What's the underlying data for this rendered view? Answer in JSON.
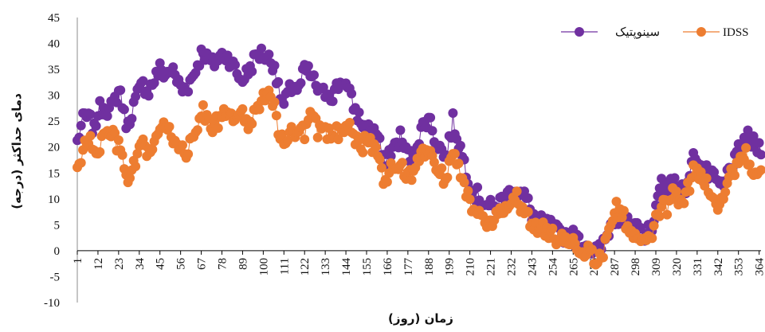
{
  "chart_data": {
    "type": "line",
    "title": "",
    "xlabel": "زمان (روز)",
    "ylabel": "دمای حداکثر (درجه)",
    "ylim": [
      -10,
      45
    ],
    "yticks": [
      -10,
      -5,
      0,
      5,
      10,
      15,
      20,
      25,
      30,
      35,
      40,
      45
    ],
    "xlim": [
      1,
      365
    ],
    "xticks": [
      1,
      12,
      23,
      34,
      45,
      56,
      67,
      78,
      89,
      100,
      111,
      122,
      133,
      144,
      155,
      166,
      177,
      188,
      199,
      210,
      221,
      232,
      243,
      254,
      265,
      276,
      287,
      298,
      309,
      320,
      331,
      342,
      353,
      364
    ],
    "grid": false,
    "legend_position": "top-right",
    "series": [
      {
        "name": "سینوپتیک",
        "color": "#7030A0",
        "keypoints": [
          [
            1,
            21
          ],
          [
            3,
            24
          ],
          [
            5,
            26
          ],
          [
            8,
            25
          ],
          [
            10,
            23
          ],
          [
            12,
            27
          ],
          [
            15,
            28
          ],
          [
            18,
            27
          ],
          [
            20,
            28
          ],
          [
            22,
            30
          ],
          [
            24,
            31
          ],
          [
            26,
            26
          ],
          [
            28,
            24
          ],
          [
            30,
            27
          ],
          [
            33,
            30
          ],
          [
            36,
            32
          ],
          [
            39,
            31
          ],
          [
            42,
            33
          ],
          [
            45,
            35
          ],
          [
            48,
            34
          ],
          [
            51,
            35
          ],
          [
            54,
            33
          ],
          [
            57,
            31
          ],
          [
            60,
            32
          ],
          [
            63,
            34
          ],
          [
            66,
            37
          ],
          [
            68,
            39
          ],
          [
            70,
            37
          ],
          [
            73,
            36
          ],
          [
            76,
            37
          ],
          [
            79,
            38
          ],
          [
            82,
            37
          ],
          [
            85,
            35
          ],
          [
            88,
            33
          ],
          [
            91,
            34
          ],
          [
            94,
            36
          ],
          [
            97,
            38
          ],
          [
            100,
            38
          ],
          [
            103,
            37
          ],
          [
            106,
            36
          ],
          [
            108,
            31
          ],
          [
            111,
            28
          ],
          [
            113,
            30
          ],
          [
            116,
            32
          ],
          [
            119,
            31
          ],
          [
            122,
            35
          ],
          [
            125,
            34
          ],
          [
            128,
            32
          ],
          [
            131,
            30
          ],
          [
            134,
            31
          ],
          [
            137,
            30
          ],
          [
            140,
            32
          ],
          [
            143,
            33
          ],
          [
            146,
            30
          ],
          [
            149,
            27
          ],
          [
            152,
            25
          ],
          [
            155,
            23
          ],
          [
            158,
            24
          ],
          [
            161,
            22
          ],
          [
            164,
            17
          ],
          [
            167,
            19
          ],
          [
            170,
            20
          ],
          [
            173,
            22
          ],
          [
            176,
            19
          ],
          [
            179,
            18
          ],
          [
            182,
            21
          ],
          [
            185,
            24
          ],
          [
            188,
            26
          ],
          [
            191,
            22
          ],
          [
            194,
            20
          ],
          [
            197,
            18
          ],
          [
            199,
            21
          ],
          [
            201,
            25
          ],
          [
            204,
            21
          ],
          [
            207,
            17
          ],
          [
            210,
            13
          ],
          [
            213,
            11
          ],
          [
            216,
            10
          ],
          [
            219,
            9
          ],
          [
            222,
            8
          ],
          [
            225,
            9
          ],
          [
            228,
            10
          ],
          [
            231,
            11
          ],
          [
            234,
            12
          ],
          [
            237,
            11
          ],
          [
            240,
            10
          ],
          [
            243,
            7
          ],
          [
            246,
            6
          ],
          [
            249,
            5
          ],
          [
            252,
            5
          ],
          [
            255,
            4
          ],
          [
            258,
            3
          ],
          [
            261,
            3
          ],
          [
            264,
            3
          ],
          [
            267,
            2
          ],
          [
            270,
            1
          ],
          [
            273,
            1
          ],
          [
            276,
            0
          ],
          [
            279,
            0
          ],
          [
            282,
            2
          ],
          [
            285,
            5
          ],
          [
            288,
            7
          ],
          [
            291,
            6
          ],
          [
            294,
            5
          ],
          [
            297,
            4
          ],
          [
            300,
            4
          ],
          [
            303,
            3
          ],
          [
            306,
            4
          ],
          [
            309,
            8
          ],
          [
            312,
            13
          ],
          [
            315,
            12
          ],
          [
            318,
            14
          ],
          [
            321,
            13
          ],
          [
            324,
            11
          ],
          [
            327,
            15
          ],
          [
            330,
            19
          ],
          [
            333,
            16
          ],
          [
            336,
            15
          ],
          [
            339,
            14
          ],
          [
            342,
            13
          ],
          [
            345,
            12
          ],
          [
            348,
            16
          ],
          [
            351,
            17
          ],
          [
            354,
            20
          ],
          [
            357,
            22
          ],
          [
            360,
            21
          ],
          [
            363,
            20
          ],
          [
            365,
            20
          ]
        ]
      },
      {
        "name": "IDSS",
        "color": "#ED7D31",
        "keypoints": [
          [
            1,
            16
          ],
          [
            3,
            18
          ],
          [
            5,
            20
          ],
          [
            8,
            21
          ],
          [
            10,
            20
          ],
          [
            12,
            19
          ],
          [
            15,
            22
          ],
          [
            18,
            23
          ],
          [
            20,
            22
          ],
          [
            23,
            20
          ],
          [
            26,
            16
          ],
          [
            28,
            13
          ],
          [
            30,
            15
          ],
          [
            33,
            18
          ],
          [
            36,
            20
          ],
          [
            39,
            19
          ],
          [
            42,
            21
          ],
          [
            45,
            23
          ],
          [
            48,
            24
          ],
          [
            51,
            22
          ],
          [
            54,
            21
          ],
          [
            57,
            20
          ],
          [
            60,
            19
          ],
          [
            63,
            22
          ],
          [
            66,
            25
          ],
          [
            68,
            27
          ],
          [
            70,
            26
          ],
          [
            73,
            24
          ],
          [
            76,
            25
          ],
          [
            79,
            26
          ],
          [
            82,
            25
          ],
          [
            85,
            26
          ],
          [
            88,
            27
          ],
          [
            91,
            24
          ],
          [
            94,
            26
          ],
          [
            97,
            28
          ],
          [
            100,
            29
          ],
          [
            103,
            30
          ],
          [
            106,
            28
          ],
          [
            108,
            23
          ],
          [
            111,
            20
          ],
          [
            113,
            21
          ],
          [
            116,
            23
          ],
          [
            119,
            24
          ],
          [
            122,
            22
          ],
          [
            125,
            26
          ],
          [
            128,
            24
          ],
          [
            131,
            22
          ],
          [
            134,
            23
          ],
          [
            137,
            22
          ],
          [
            140,
            23
          ],
          [
            143,
            24
          ],
          [
            146,
            25
          ],
          [
            149,
            22
          ],
          [
            152,
            20
          ],
          [
            155,
            21
          ],
          [
            158,
            20
          ],
          [
            161,
            19
          ],
          [
            164,
            14
          ],
          [
            167,
            15
          ],
          [
            170,
            16
          ],
          [
            173,
            17
          ],
          [
            176,
            15
          ],
          [
            179,
            14
          ],
          [
            182,
            17
          ],
          [
            185,
            19
          ],
          [
            188,
            20
          ],
          [
            191,
            17
          ],
          [
            194,
            15
          ],
          [
            197,
            14
          ],
          [
            199,
            17
          ],
          [
            201,
            20
          ],
          [
            204,
            17
          ],
          [
            207,
            13
          ],
          [
            210,
            9
          ],
          [
            213,
            7
          ],
          [
            216,
            6
          ],
          [
            219,
            5
          ],
          [
            222,
            6
          ],
          [
            225,
            6
          ],
          [
            228,
            8
          ],
          [
            231,
            9
          ],
          [
            234,
            11
          ],
          [
            237,
            9
          ],
          [
            240,
            8
          ],
          [
            243,
            5
          ],
          [
            246,
            4
          ],
          [
            249,
            4
          ],
          [
            252,
            3
          ],
          [
            255,
            3
          ],
          [
            258,
            2
          ],
          [
            261,
            2
          ],
          [
            264,
            2
          ],
          [
            267,
            1
          ],
          [
            270,
            0
          ],
          [
            273,
            0
          ],
          [
            276,
            -1
          ],
          [
            279,
            -2
          ],
          [
            282,
            1
          ],
          [
            285,
            6
          ],
          [
            288,
            8
          ],
          [
            291,
            7
          ],
          [
            294,
            5
          ],
          [
            297,
            3
          ],
          [
            300,
            2
          ],
          [
            303,
            1
          ],
          [
            306,
            2
          ],
          [
            309,
            6
          ],
          [
            312,
            9
          ],
          [
            315,
            8
          ],
          [
            318,
            11
          ],
          [
            321,
            10
          ],
          [
            324,
            9
          ],
          [
            327,
            13
          ],
          [
            330,
            16
          ],
          [
            333,
            14
          ],
          [
            336,
            13
          ],
          [
            339,
            11
          ],
          [
            342,
            9
          ],
          [
            345,
            11
          ],
          [
            348,
            14
          ],
          [
            351,
            16
          ],
          [
            354,
            18
          ],
          [
            357,
            19
          ],
          [
            360,
            15
          ],
          [
            363,
            14
          ],
          [
            365,
            15
          ]
        ]
      }
    ]
  }
}
